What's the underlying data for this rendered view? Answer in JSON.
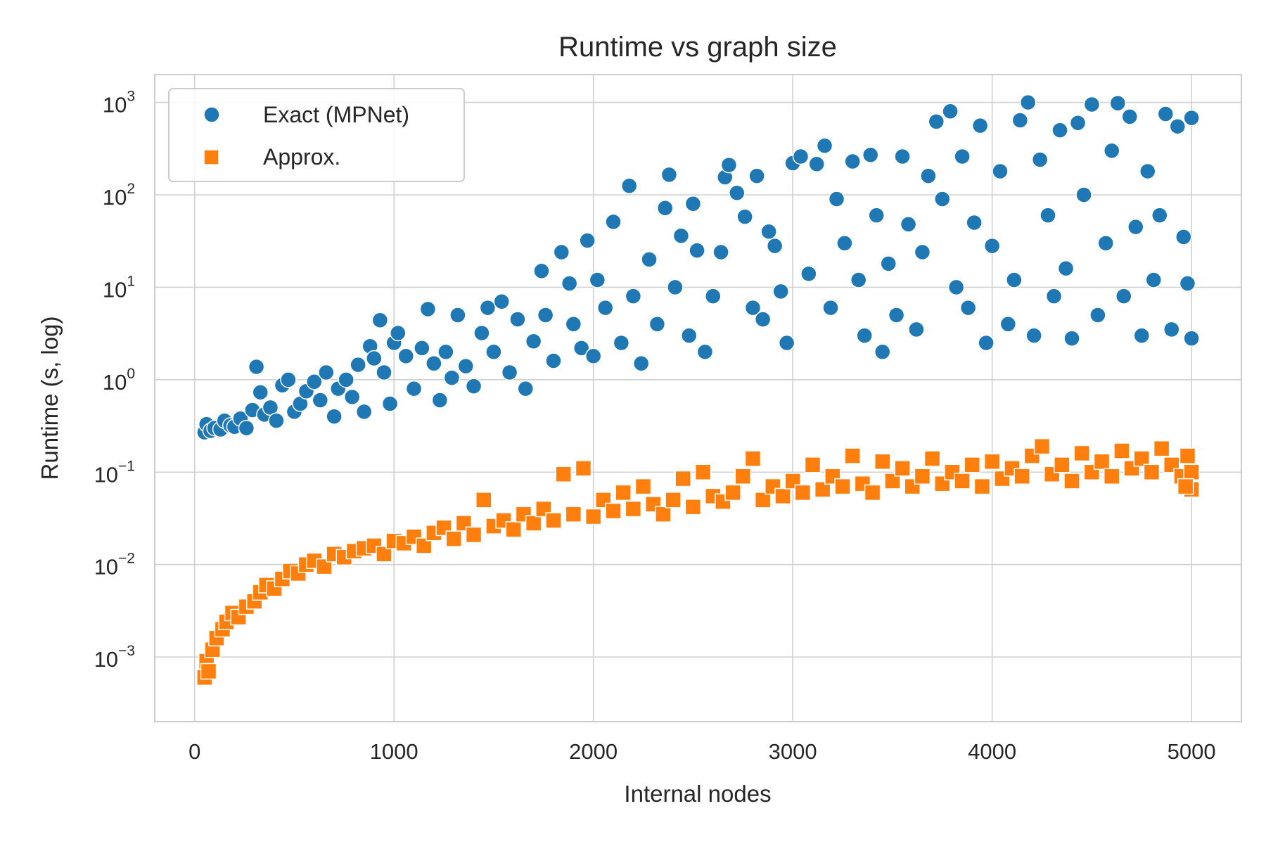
{
  "chart_data": {
    "type": "scatter",
    "title": "Runtime vs graph size",
    "xlabel": "Internal nodes",
    "ylabel": "Runtime (s, log)",
    "xlim": [
      -200,
      5250
    ],
    "ylim": [
      0.0002,
      2000
    ],
    "yscale": "log",
    "xticks": [
      0,
      1000,
      2000,
      3000,
      4000,
      5000
    ],
    "xtick_labels": [
      "0",
      "1000",
      "2000",
      "3000",
      "4000",
      "5000"
    ],
    "yticks": [
      {
        "value": 0.001,
        "base": "10",
        "exp": "−3"
      },
      {
        "value": 0.01,
        "base": "10",
        "exp": "−2"
      },
      {
        "value": 0.1,
        "base": "10",
        "exp": "−1"
      },
      {
        "value": 1,
        "base": "10",
        "exp": "0"
      },
      {
        "value": 10,
        "base": "10",
        "exp": "1"
      },
      {
        "value": 100,
        "base": "10",
        "exp": "2"
      },
      {
        "value": 1000,
        "base": "10",
        "exp": "3"
      }
    ],
    "grid": true,
    "legend": {
      "position": "top-left"
    },
    "series": [
      {
        "name": "Exact (MPNet)",
        "marker": "circle",
        "color": "#1f77b4",
        "points": [
          [
            50,
            0.27
          ],
          [
            60,
            0.33
          ],
          [
            80,
            0.28
          ],
          [
            100,
            0.3
          ],
          [
            130,
            0.29
          ],
          [
            150,
            0.36
          ],
          [
            180,
            0.32
          ],
          [
            200,
            0.31
          ],
          [
            230,
            0.38
          ],
          [
            260,
            0.3
          ],
          [
            290,
            0.47
          ],
          [
            310,
            1.38
          ],
          [
            330,
            0.73
          ],
          [
            350,
            0.42
          ],
          [
            380,
            0.5
          ],
          [
            410,
            0.36
          ],
          [
            440,
            0.87
          ],
          [
            470,
            1.0
          ],
          [
            500,
            0.45
          ],
          [
            530,
            0.55
          ],
          [
            560,
            0.75
          ],
          [
            600,
            0.95
          ],
          [
            630,
            0.6
          ],
          [
            660,
            1.2
          ],
          [
            700,
            0.4
          ],
          [
            720,
            0.8
          ],
          [
            760,
            1.0
          ],
          [
            790,
            0.65
          ],
          [
            820,
            1.45
          ],
          [
            850,
            0.45
          ],
          [
            880,
            2.3
          ],
          [
            900,
            1.7
          ],
          [
            930,
            4.4
          ],
          [
            950,
            1.2
          ],
          [
            980,
            0.55
          ],
          [
            1000,
            2.5
          ],
          [
            1020,
            3.2
          ],
          [
            1060,
            1.8
          ],
          [
            1100,
            0.8
          ],
          [
            1140,
            2.2
          ],
          [
            1170,
            5.8
          ],
          [
            1200,
            1.5
          ],
          [
            1230,
            0.6
          ],
          [
            1260,
            2.0
          ],
          [
            1290,
            1.05
          ],
          [
            1320,
            5.0
          ],
          [
            1360,
            1.4
          ],
          [
            1400,
            0.85
          ],
          [
            1440,
            3.2
          ],
          [
            1470,
            6.0
          ],
          [
            1500,
            2.0
          ],
          [
            1540,
            7.0
          ],
          [
            1580,
            1.2
          ],
          [
            1620,
            4.5
          ],
          [
            1660,
            0.8
          ],
          [
            1700,
            2.6
          ],
          [
            1740,
            15.0
          ],
          [
            1760,
            5.0
          ],
          [
            1800,
            1.6
          ],
          [
            1840,
            24.0
          ],
          [
            1880,
            11.0
          ],
          [
            1900,
            4.0
          ],
          [
            1940,
            2.2
          ],
          [
            1970,
            32.0
          ],
          [
            2000,
            1.8
          ],
          [
            2020,
            12.0
          ],
          [
            2060,
            6.0
          ],
          [
            2100,
            51.0
          ],
          [
            2140,
            2.5
          ],
          [
            2180,
            125.0
          ],
          [
            2200,
            8.0
          ],
          [
            2240,
            1.5
          ],
          [
            2280,
            20.0
          ],
          [
            2320,
            4.0
          ],
          [
            2360,
            72.0
          ],
          [
            2380,
            165.0
          ],
          [
            2410,
            10.0
          ],
          [
            2440,
            36.0
          ],
          [
            2480,
            3.0
          ],
          [
            2500,
            80.0
          ],
          [
            2520,
            25.0
          ],
          [
            2560,
            2.0
          ],
          [
            2600,
            8.0
          ],
          [
            2640,
            24.0
          ],
          [
            2660,
            155.0
          ],
          [
            2680,
            210.0
          ],
          [
            2720,
            105.0
          ],
          [
            2760,
            58.0
          ],
          [
            2800,
            6.0
          ],
          [
            2820,
            160.0
          ],
          [
            2850,
            4.5
          ],
          [
            2880,
            40.0
          ],
          [
            2910,
            28.0
          ],
          [
            2940,
            9.0
          ],
          [
            2970,
            2.5
          ],
          [
            3000,
            220.0
          ],
          [
            3040,
            260.0
          ],
          [
            3080,
            14.0
          ],
          [
            3120,
            215.0
          ],
          [
            3160,
            340.0
          ],
          [
            3190,
            6.0
          ],
          [
            3220,
            90.0
          ],
          [
            3260,
            30.0
          ],
          [
            3300,
            230.0
          ],
          [
            3330,
            12.0
          ],
          [
            3360,
            3.0
          ],
          [
            3390,
            270.0
          ],
          [
            3420,
            60.0
          ],
          [
            3450,
            2.0
          ],
          [
            3480,
            18.0
          ],
          [
            3520,
            5.0
          ],
          [
            3550,
            260.0
          ],
          [
            3580,
            48.0
          ],
          [
            3620,
            3.5
          ],
          [
            3650,
            24.0
          ],
          [
            3680,
            160.0
          ],
          [
            3720,
            620.0
          ],
          [
            3750,
            90.0
          ],
          [
            3790,
            800.0
          ],
          [
            3820,
            10.0
          ],
          [
            3850,
            260.0
          ],
          [
            3880,
            6.0
          ],
          [
            3910,
            50.0
          ],
          [
            3940,
            560.0
          ],
          [
            3970,
            2.5
          ],
          [
            4000,
            28.0
          ],
          [
            4040,
            180.0
          ],
          [
            4080,
            4.0
          ],
          [
            4110,
            12.0
          ],
          [
            4140,
            640.0
          ],
          [
            4180,
            1000.0
          ],
          [
            4210,
            3.0
          ],
          [
            4240,
            240.0
          ],
          [
            4280,
            60.0
          ],
          [
            4310,
            8.0
          ],
          [
            4340,
            500.0
          ],
          [
            4370,
            16.0
          ],
          [
            4400,
            2.8
          ],
          [
            4430,
            600.0
          ],
          [
            4460,
            100.0
          ],
          [
            4500,
            950.0
          ],
          [
            4530,
            5.0
          ],
          [
            4570,
            30.0
          ],
          [
            4600,
            300.0
          ],
          [
            4630,
            980.0
          ],
          [
            4660,
            8.0
          ],
          [
            4690,
            700.0
          ],
          [
            4720,
            45.0
          ],
          [
            4750,
            3.0
          ],
          [
            4780,
            180.0
          ],
          [
            4810,
            12.0
          ],
          [
            4840,
            60.0
          ],
          [
            4870,
            750.0
          ],
          [
            4900,
            3.5
          ],
          [
            4930,
            550.0
          ],
          [
            4960,
            35.0
          ],
          [
            4980,
            11.0
          ],
          [
            5000,
            680.0
          ],
          [
            5000,
            2.8
          ]
        ]
      },
      {
        "name": "Approx.",
        "marker": "square",
        "color": "#ff7f0e",
        "points": [
          [
            50,
            0.0006
          ],
          [
            60,
            0.0009
          ],
          [
            70,
            0.0007
          ],
          [
            90,
            0.0012
          ],
          [
            110,
            0.0016
          ],
          [
            140,
            0.002
          ],
          [
            160,
            0.0024
          ],
          [
            190,
            0.003
          ],
          [
            220,
            0.0027
          ],
          [
            260,
            0.0035
          ],
          [
            300,
            0.004
          ],
          [
            330,
            0.005
          ],
          [
            360,
            0.006
          ],
          [
            400,
            0.0055
          ],
          [
            440,
            0.007
          ],
          [
            480,
            0.0085
          ],
          [
            520,
            0.008
          ],
          [
            560,
            0.01
          ],
          [
            600,
            0.011
          ],
          [
            650,
            0.0095
          ],
          [
            700,
            0.013
          ],
          [
            750,
            0.012
          ],
          [
            800,
            0.014
          ],
          [
            850,
            0.015
          ],
          [
            900,
            0.016
          ],
          [
            950,
            0.013
          ],
          [
            1000,
            0.018
          ],
          [
            1050,
            0.017
          ],
          [
            1100,
            0.02
          ],
          [
            1150,
            0.016
          ],
          [
            1200,
            0.022
          ],
          [
            1250,
            0.025
          ],
          [
            1300,
            0.019
          ],
          [
            1350,
            0.028
          ],
          [
            1400,
            0.021
          ],
          [
            1450,
            0.05
          ],
          [
            1500,
            0.026
          ],
          [
            1550,
            0.03
          ],
          [
            1600,
            0.024
          ],
          [
            1650,
            0.035
          ],
          [
            1700,
            0.028
          ],
          [
            1750,
            0.04
          ],
          [
            1800,
            0.03
          ],
          [
            1850,
            0.095
          ],
          [
            1900,
            0.035
          ],
          [
            1950,
            0.11
          ],
          [
            2000,
            0.033
          ],
          [
            2050,
            0.05
          ],
          [
            2100,
            0.038
          ],
          [
            2150,
            0.06
          ],
          [
            2200,
            0.04
          ],
          [
            2250,
            0.07
          ],
          [
            2300,
            0.045
          ],
          [
            2350,
            0.035
          ],
          [
            2400,
            0.05
          ],
          [
            2450,
            0.085
          ],
          [
            2500,
            0.042
          ],
          [
            2550,
            0.1
          ],
          [
            2600,
            0.055
          ],
          [
            2650,
            0.048
          ],
          [
            2700,
            0.06
          ],
          [
            2750,
            0.09
          ],
          [
            2800,
            0.14
          ],
          [
            2850,
            0.05
          ],
          [
            2900,
            0.07
          ],
          [
            2950,
            0.055
          ],
          [
            3000,
            0.08
          ],
          [
            3050,
            0.06
          ],
          [
            3100,
            0.12
          ],
          [
            3150,
            0.065
          ],
          [
            3200,
            0.09
          ],
          [
            3250,
            0.07
          ],
          [
            3300,
            0.15
          ],
          [
            3350,
            0.075
          ],
          [
            3400,
            0.06
          ],
          [
            3450,
            0.13
          ],
          [
            3500,
            0.08
          ],
          [
            3550,
            0.11
          ],
          [
            3600,
            0.07
          ],
          [
            3650,
            0.09
          ],
          [
            3700,
            0.14
          ],
          [
            3750,
            0.075
          ],
          [
            3800,
            0.1
          ],
          [
            3850,
            0.08
          ],
          [
            3900,
            0.12
          ],
          [
            3950,
            0.07
          ],
          [
            4000,
            0.13
          ],
          [
            4050,
            0.085
          ],
          [
            4100,
            0.11
          ],
          [
            4150,
            0.09
          ],
          [
            4200,
            0.15
          ],
          [
            4250,
            0.19
          ],
          [
            4300,
            0.095
          ],
          [
            4350,
            0.12
          ],
          [
            4400,
            0.08
          ],
          [
            4450,
            0.16
          ],
          [
            4500,
            0.1
          ],
          [
            4550,
            0.13
          ],
          [
            4600,
            0.09
          ],
          [
            4650,
            0.17
          ],
          [
            4700,
            0.11
          ],
          [
            4750,
            0.14
          ],
          [
            4800,
            0.1
          ],
          [
            4850,
            0.18
          ],
          [
            4900,
            0.12
          ],
          [
            4950,
            0.09
          ],
          [
            4980,
            0.15
          ],
          [
            5000,
            0.065
          ],
          [
            5000,
            0.1
          ],
          [
            4970,
            0.07
          ]
        ]
      }
    ]
  }
}
